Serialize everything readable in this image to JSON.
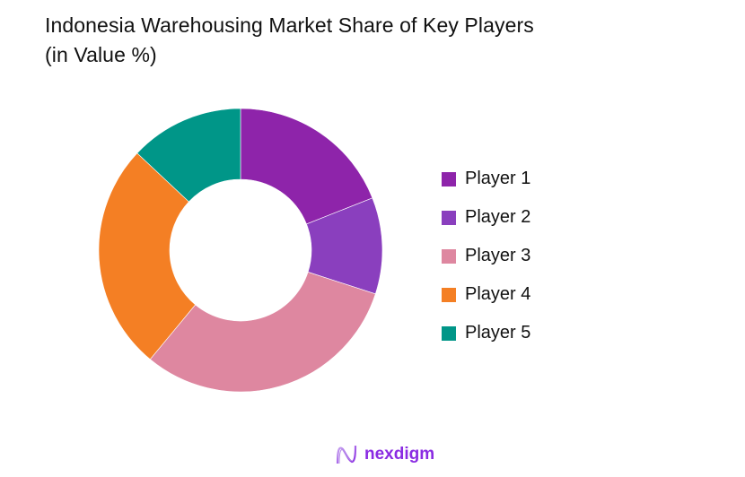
{
  "title": {
    "line1": "Indonesia Warehousing Market Share of Key Players",
    "line2": "(in Value %)"
  },
  "legend": {
    "items": [
      {
        "label": "Player 1",
        "color": "#8E24AA"
      },
      {
        "label": "Player 2",
        "color": "#8A3FBE"
      },
      {
        "label": "Player 3",
        "color": "#DE87A0"
      },
      {
        "label": "Player 4",
        "color": "#F47F24"
      },
      {
        "label": "Player 5",
        "color": "#009688"
      }
    ]
  },
  "logo": {
    "text": "nexdigm",
    "color": "#8a2be2"
  },
  "chart_data": {
    "type": "pie",
    "variant": "donut",
    "title": "Indonesia Warehousing Market Share of Key Players (in Value %)",
    "categories": [
      "Player 1",
      "Player 2",
      "Player 3",
      "Player 4",
      "Player 5"
    ],
    "values": [
      19,
      11,
      31,
      26,
      13
    ],
    "colors": [
      "#8E24AA",
      "#8A3FBE",
      "#DE87A0",
      "#F47F24",
      "#009688"
    ],
    "start_angle_deg": 0,
    "direction": "clockwise",
    "legend_position": "right",
    "units": "%"
  }
}
